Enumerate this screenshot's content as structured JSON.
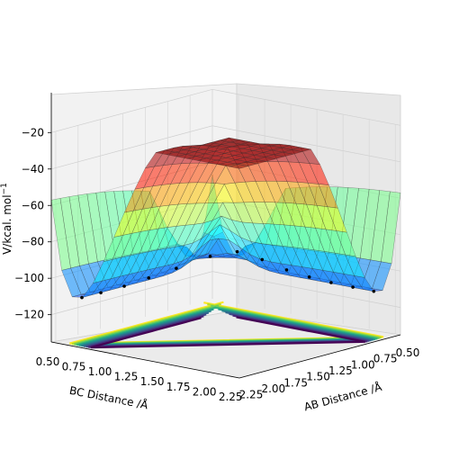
{
  "chart_data": {
    "type": "surface3d",
    "title": "",
    "zlabel": "V/kcal. mol$^{-1}$",
    "zlabel_text": "V/kcal. mol",
    "zlabel_sup": "−1",
    "xlabel": "AB Distance /Å",
    "ylabel": "BC Distance /Å",
    "x_ticks": [
      "0.50",
      "0.75",
      "1.00",
      "1.25",
      "1.50",
      "1.75",
      "2.00",
      "2.25"
    ],
    "y_ticks": [
      "0.50",
      "0.75",
      "1.00",
      "1.25",
      "1.50",
      "1.75",
      "2.00",
      "2.25"
    ],
    "z_ticks": [
      "−20",
      "−40",
      "−60",
      "−80",
      "−100",
      "−120"
    ],
    "x_range": [
      0.5,
      2.3
    ],
    "y_range": [
      0.5,
      2.3
    ],
    "z_range": [
      -135,
      -20
    ],
    "colormap": "jet surface, viridis contours",
    "grid": true,
    "trajectory_points": [
      [
        0.74,
        2.25,
        -108.5
      ],
      [
        0.74,
        2.05,
        -108.4
      ],
      [
        0.75,
        1.85,
        -108.0
      ],
      [
        0.76,
        1.65,
        -107.0
      ],
      [
        0.78,
        1.45,
        -105.0
      ],
      [
        0.82,
        1.25,
        -101.0
      ],
      [
        0.9,
        1.08,
        -97.5
      ],
      [
        1.05,
        0.95,
        -99.5
      ],
      [
        1.3,
        0.84,
        -104.0
      ],
      [
        1.55,
        0.79,
        -106.5
      ],
      [
        1.8,
        0.77,
        -108.0
      ],
      [
        2.05,
        0.76,
        -108.4
      ],
      [
        2.25,
        0.75,
        -108.5
      ]
    ]
  }
}
